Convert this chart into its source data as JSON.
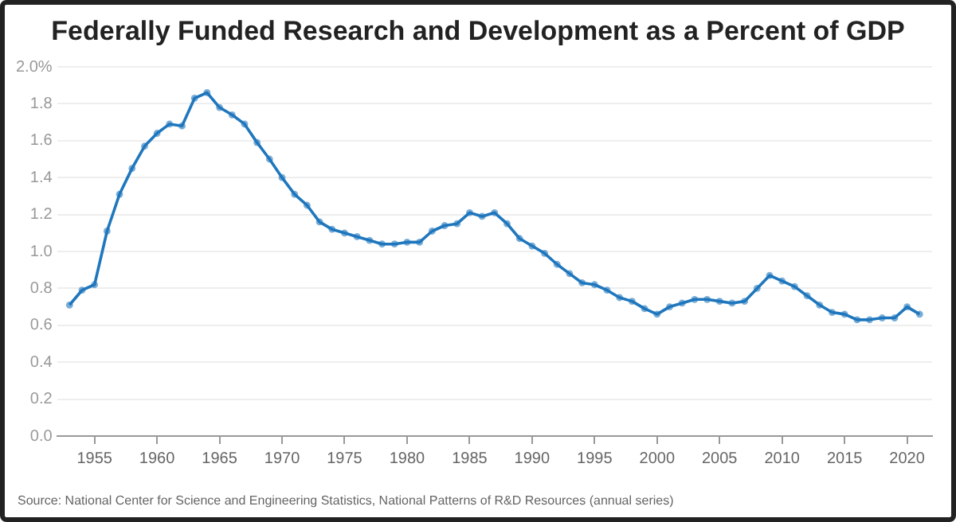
{
  "chart_data": {
    "type": "line",
    "title": "Federally Funded Research and Development as a Percent of GDP",
    "x": [
      1953,
      1954,
      1955,
      1956,
      1957,
      1958,
      1959,
      1960,
      1961,
      1962,
      1963,
      1964,
      1965,
      1966,
      1967,
      1968,
      1969,
      1970,
      1971,
      1972,
      1973,
      1974,
      1975,
      1976,
      1977,
      1978,
      1979,
      1980,
      1981,
      1982,
      1983,
      1984,
      1985,
      1986,
      1987,
      1988,
      1989,
      1990,
      1991,
      1992,
      1993,
      1994,
      1995,
      1996,
      1997,
      1998,
      1999,
      2000,
      2001,
      2002,
      2003,
      2004,
      2005,
      2006,
      2007,
      2008,
      2009,
      2010,
      2011,
      2012,
      2013,
      2014,
      2015,
      2016,
      2017,
      2018,
      2019,
      2020,
      2021
    ],
    "series": [
      {
        "color": "#1f77bd",
        "values": [
          0.71,
          0.79,
          0.82,
          1.11,
          1.31,
          1.45,
          1.57,
          1.64,
          1.69,
          1.68,
          1.83,
          1.86,
          1.78,
          1.74,
          1.69,
          1.59,
          1.5,
          1.4,
          1.31,
          1.25,
          1.16,
          1.12,
          1.1,
          1.08,
          1.06,
          1.04,
          1.04,
          1.05,
          1.05,
          1.11,
          1.14,
          1.15,
          1.21,
          1.19,
          1.21,
          1.15,
          1.07,
          1.03,
          0.99,
          0.93,
          0.88,
          0.83,
          0.82,
          0.79,
          0.75,
          0.73,
          0.69,
          0.66,
          0.7,
          0.72,
          0.74,
          0.74,
          0.73,
          0.72,
          0.73,
          0.8,
          0.87,
          0.84,
          0.81,
          0.76,
          0.71,
          0.67,
          0.66,
          0.63,
          0.63,
          0.64,
          0.64,
          0.7,
          0.66
        ]
      }
    ],
    "xlim": [
      1952,
      2022
    ],
    "xticks": [
      1955,
      1960,
      1965,
      1970,
      1975,
      1980,
      1985,
      1990,
      1995,
      2000,
      2005,
      2010,
      2015,
      2020
    ],
    "ylim": [
      0,
      2
    ],
    "yticks": [
      {
        "value": 0,
        "label": "0.0"
      },
      {
        "value": 0.2,
        "label": "0.2"
      },
      {
        "value": 0.4,
        "label": "0.4"
      },
      {
        "value": 0.6,
        "label": "0.6"
      },
      {
        "value": 0.8,
        "label": "0.8"
      },
      {
        "value": 1,
        "label": "1.0"
      },
      {
        "value": 1.2,
        "label": "1.2"
      },
      {
        "value": 1.4,
        "label": "1.4"
      },
      {
        "value": 1.6,
        "label": "1.6"
      },
      {
        "value": 1.8,
        "label": "1.8"
      },
      {
        "value": 2,
        "label": "2.0%"
      }
    ],
    "grid": "y",
    "legend": false,
    "marker": "circle",
    "line_style": "solid",
    "annotations": [
      "Source: National Center for Science and Engineering Statistics, National Patterns of R&D Resources (annual series)"
    ]
  }
}
